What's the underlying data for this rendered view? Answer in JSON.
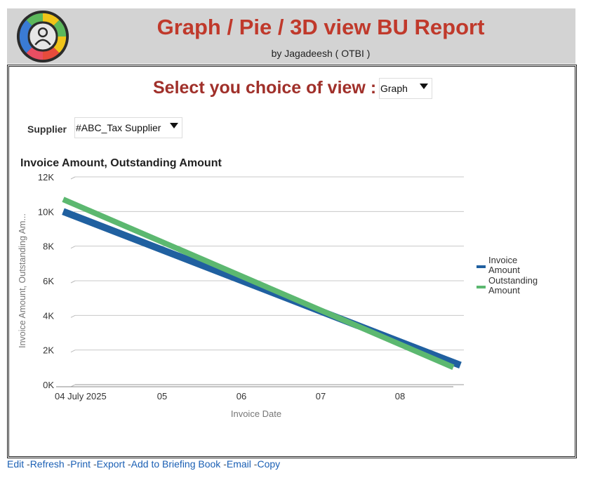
{
  "header": {
    "title": "Graph / Pie / 3D view BU Report",
    "subtitle": "by Jagadeesh ( OTBI )",
    "logo_icon": "user-circle-logo-icon"
  },
  "view": {
    "label": "Select you choice of view :",
    "selected": "Graph"
  },
  "supplier": {
    "label": "Supplier",
    "selected": "#ABC_Tax Supplier"
  },
  "chart_data": {
    "type": "line",
    "title": "Invoice Amount, Outstanding Amount",
    "xlabel": "Invoice Date",
    "ylabel": "Invoice Amount, Outstanding Am...",
    "x_tick_labels": [
      "04 July 2025",
      "05",
      "06",
      "07",
      "08"
    ],
    "y_tick_labels": [
      "0K",
      "2K",
      "4K",
      "6K",
      "8K",
      "10K",
      "12K"
    ],
    "ylim": [
      0,
      12000
    ],
    "grid": true,
    "legend_position": "right",
    "series": [
      {
        "name": "Invoice Amount",
        "color": "#2060a0",
        "x": [
          "2025-07-04",
          "2025-07-08"
        ],
        "y": [
          10000,
          1000
        ]
      },
      {
        "name": "Outstanding Amount",
        "color": "#5cb870",
        "x": [
          "2025-07-04",
          "2025-07-08"
        ],
        "y": [
          10700,
          1000
        ]
      }
    ]
  },
  "footer": {
    "links": [
      "Edit",
      "Refresh",
      "Print",
      "Export",
      "Add to Briefing Book",
      "Email",
      "Copy"
    ]
  }
}
